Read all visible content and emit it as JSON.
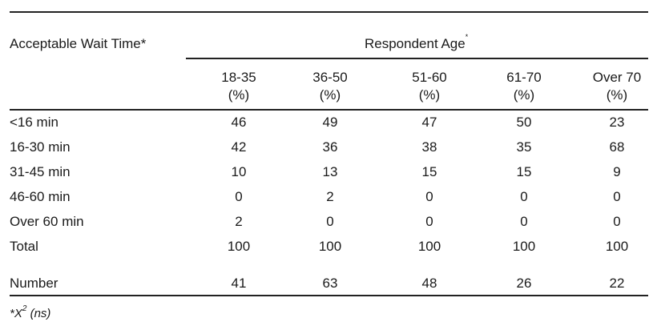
{
  "table": {
    "row_header_label": "Acceptable Wait Time*",
    "group_header_label": "Respondent Age",
    "group_header_mark": "*",
    "columns": [
      {
        "line1": "18-35",
        "line2": "(%)"
      },
      {
        "line1": "36-50",
        "line2": "(%)"
      },
      {
        "line1": "51-60",
        "line2": "(%)"
      },
      {
        "line1": "61-70",
        "line2": "(%)"
      },
      {
        "line1": "Over 70",
        "line2": "(%)"
      }
    ],
    "rows": [
      {
        "label": "<16 min",
        "values": [
          "46",
          "49",
          "47",
          "50",
          "23"
        ]
      },
      {
        "label": "16-30 min",
        "values": [
          "42",
          "36",
          "38",
          "35",
          "68"
        ]
      },
      {
        "label": "31-45 min",
        "values": [
          "10",
          "13",
          "15",
          "15",
          "9"
        ]
      },
      {
        "label": "46-60 min",
        "values": [
          "0",
          "2",
          "0",
          "0",
          "0"
        ]
      },
      {
        "label": "Over 60 min",
        "values": [
          "2",
          "0",
          "0",
          "0",
          "0"
        ]
      },
      {
        "label": "Total",
        "values": [
          "100",
          "100",
          "100",
          "100",
          "100"
        ]
      },
      {
        "label": "Number",
        "values": [
          "41",
          "63",
          "48",
          "26",
          "22"
        ]
      }
    ]
  },
  "footnote": {
    "prefix": "*X",
    "superscript": "2",
    "suffix": " (ns)"
  }
}
